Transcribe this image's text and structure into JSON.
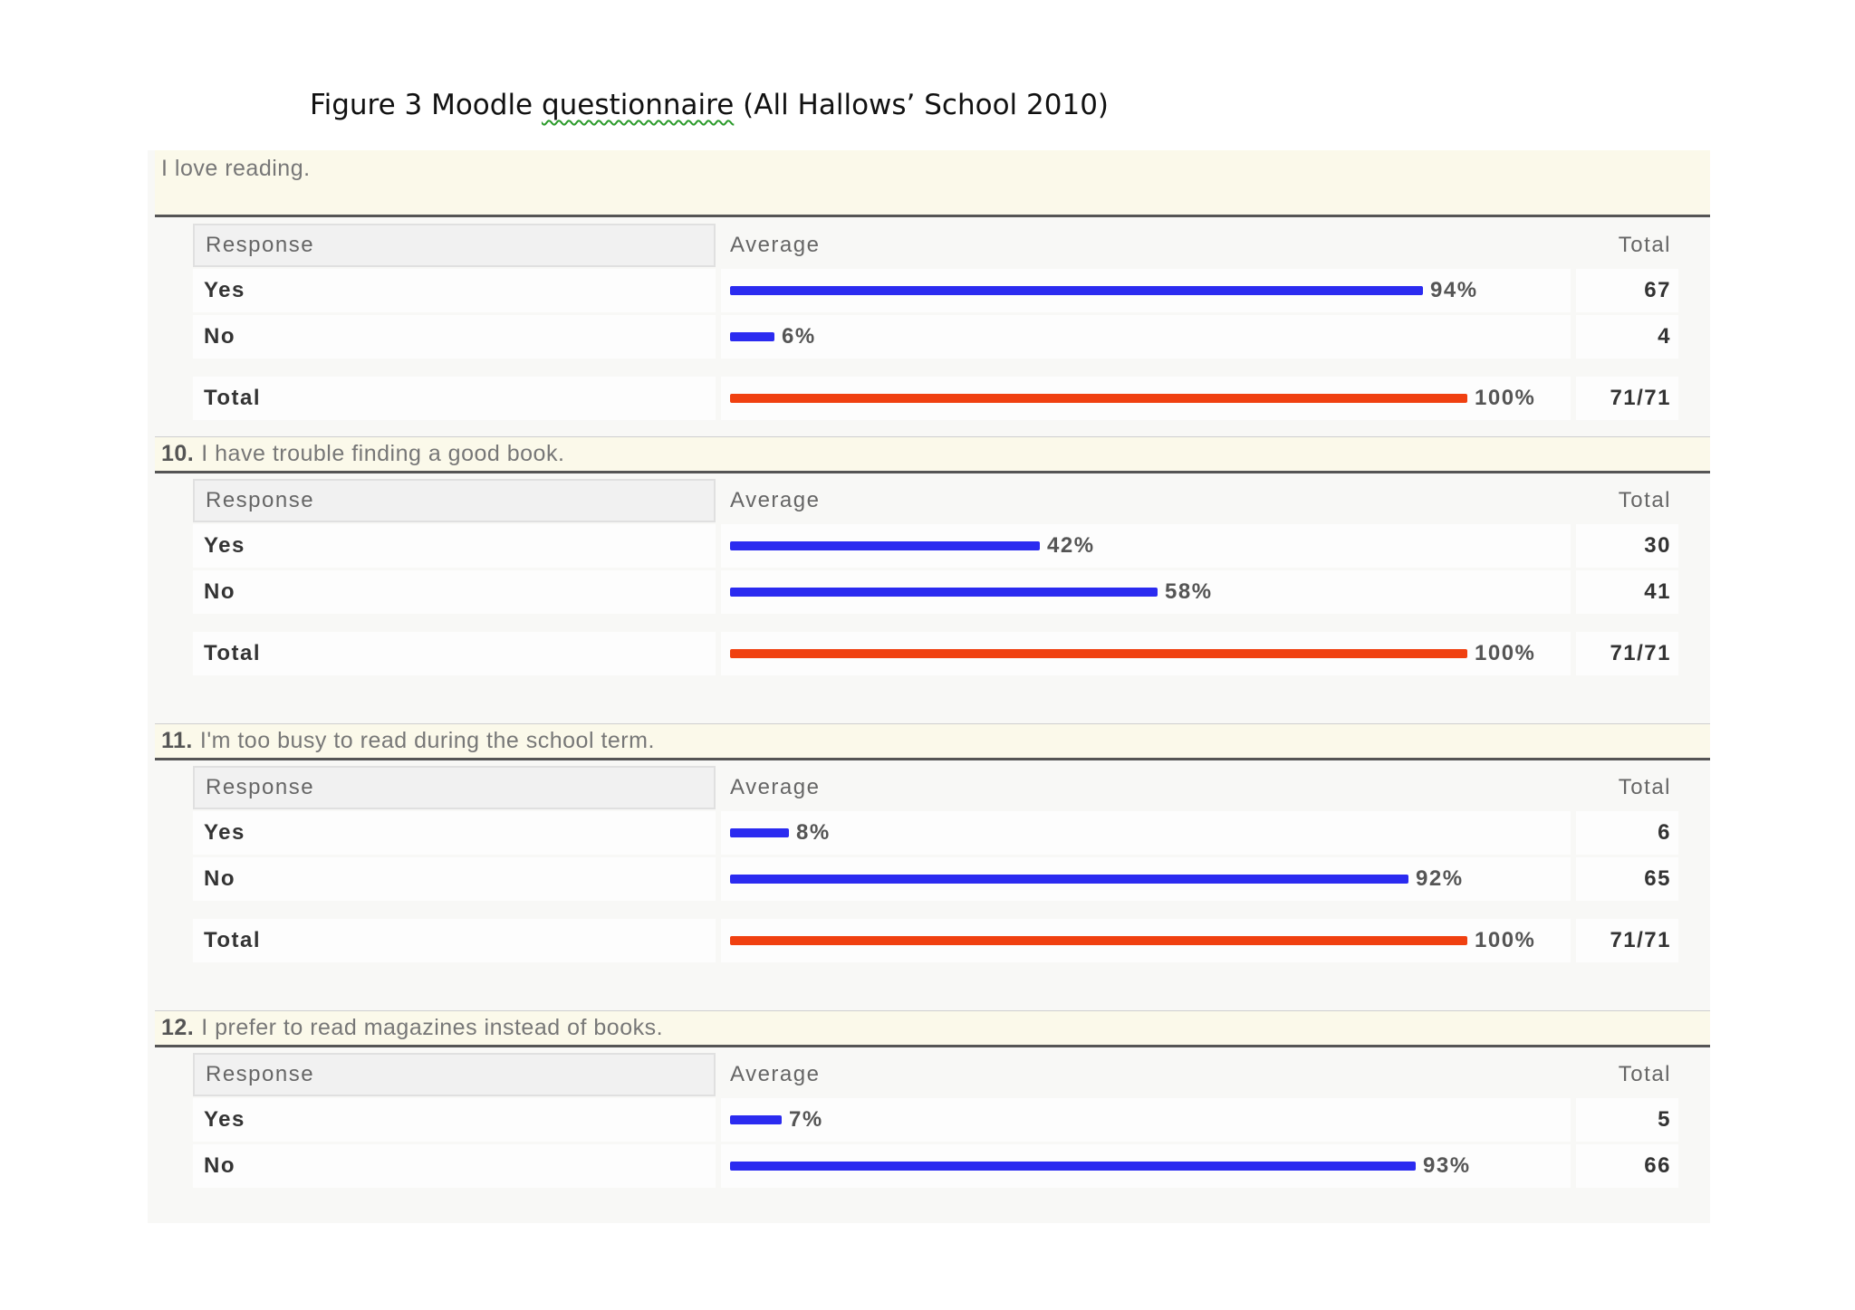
{
  "caption": {
    "before": "Figure 3 Moodle ",
    "squiggle_word": "questionnaire",
    "after": " (All Hallows’ School 2010)"
  },
  "table_headers": {
    "response": "Response",
    "average": "Average",
    "total": "Total"
  },
  "questions": [
    {
      "number": "",
      "text": "I love reading.",
      "rows": [
        {
          "label": "Yes",
          "percent": 94,
          "percent_label": "94%",
          "count": "67"
        },
        {
          "label": "No",
          "percent": 6,
          "percent_label": "6%",
          "count": "4"
        }
      ],
      "total": {
        "label": "Total",
        "percent": 100,
        "percent_label": "100%",
        "count": "71/71"
      }
    },
    {
      "number": "10.",
      "text": "I have trouble finding a good book.",
      "rows": [
        {
          "label": "Yes",
          "percent": 42,
          "percent_label": "42%",
          "count": "30"
        },
        {
          "label": "No",
          "percent": 58,
          "percent_label": "58%",
          "count": "41"
        }
      ],
      "total": {
        "label": "Total",
        "percent": 100,
        "percent_label": "100%",
        "count": "71/71"
      }
    },
    {
      "number": "11.",
      "text": "I'm too busy to read during the school term.",
      "rows": [
        {
          "label": "Yes",
          "percent": 8,
          "percent_label": "8%",
          "count": "6"
        },
        {
          "label": "No",
          "percent": 92,
          "percent_label": "92%",
          "count": "65"
        }
      ],
      "total": {
        "label": "Total",
        "percent": 100,
        "percent_label": "100%",
        "count": "71/71"
      }
    },
    {
      "number": "12.",
      "text": "I prefer to read magazines instead of books.",
      "rows": [
        {
          "label": "Yes",
          "percent": 7,
          "percent_label": "7%",
          "count": "5"
        },
        {
          "label": "No",
          "percent": 93,
          "percent_label": "93%",
          "count": "66"
        }
      ],
      "total": null
    }
  ],
  "colors": {
    "response_bar": "#2b2bf0",
    "total_bar": "#f04010",
    "question_header_bg": "#fbf9ea"
  }
}
